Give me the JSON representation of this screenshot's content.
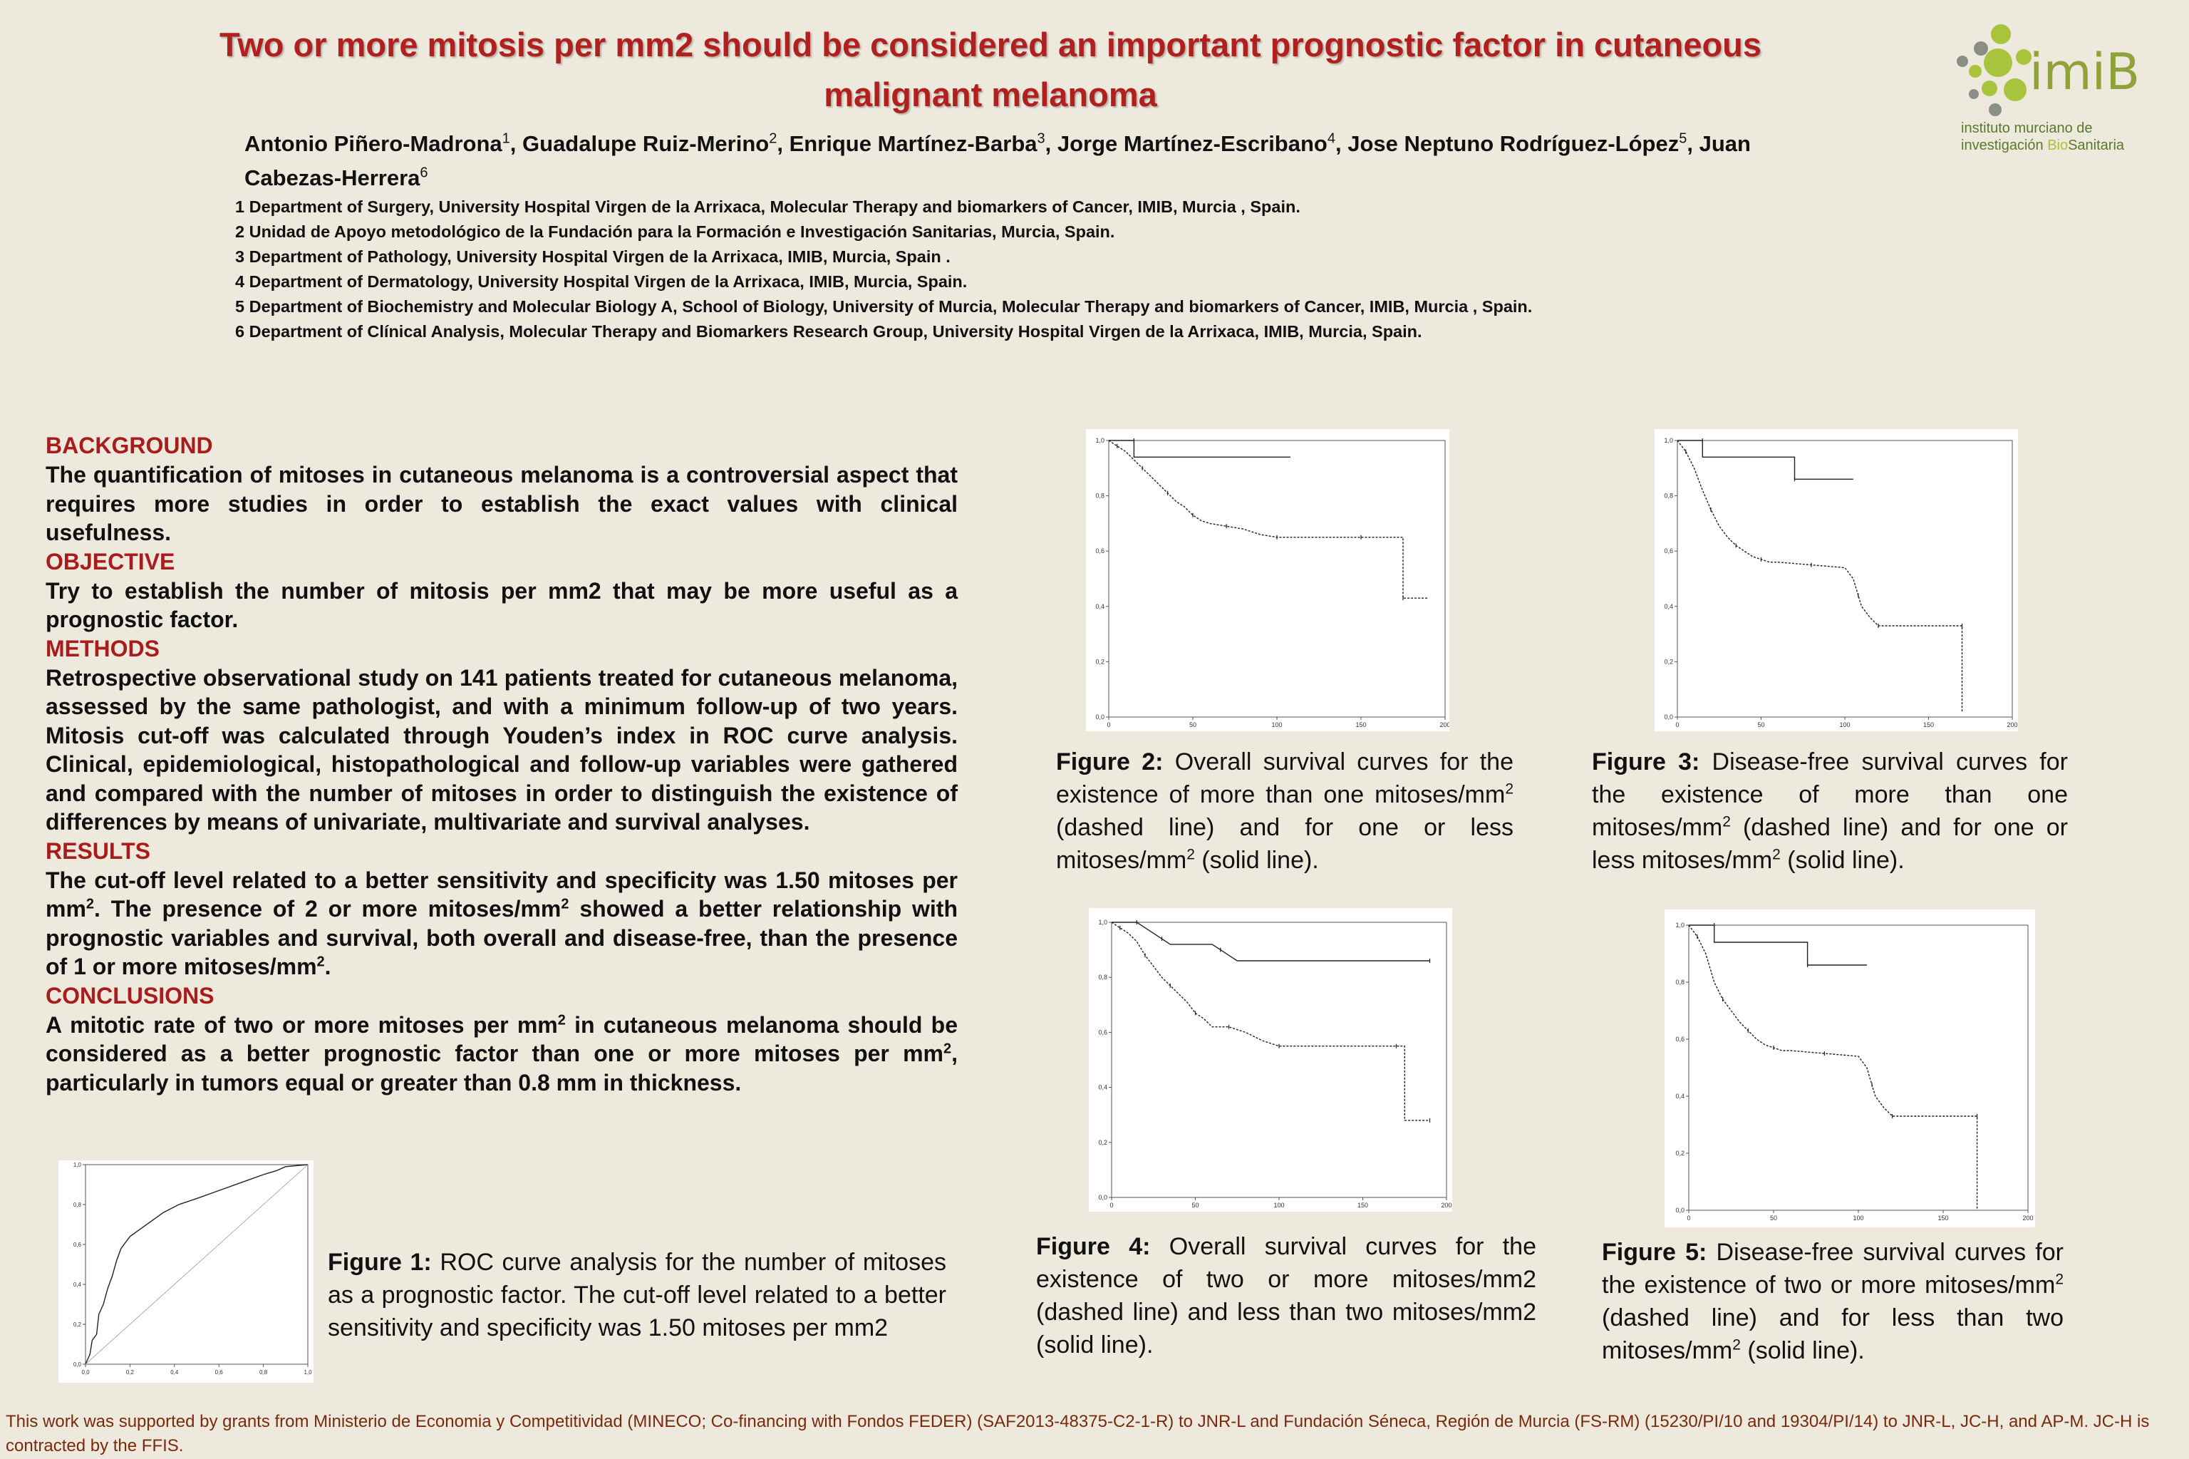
{
  "title": "Two or more mitosis per mm2 should be considered an important prognostic factor in cutaneous malignant melanoma",
  "authors": [
    {
      "name": "Antonio Piñero-Madrona",
      "sup": "1"
    },
    {
      "name": "Guadalupe Ruiz-Merino",
      "sup": "2"
    },
    {
      "name": "Enrique Martínez-Barba",
      "sup": "3"
    },
    {
      "name": "Jorge Martínez-Escribano",
      "sup": "4"
    },
    {
      "name": "Jose Neptuno Rodríguez-López",
      "sup": "5"
    },
    {
      "name": "Juan Cabezas-Herrera",
      "sup": "6"
    }
  ],
  "affiliations": [
    "1 Department of Surgery, University Hospital Virgen de la Arrixaca,  Molecular Therapy and biomarkers of Cancer, IMIB, Murcia , Spain.",
    "2 Unidad de Apoyo metodológico de la Fundación para la Formación e Investigación Sanitarias, Murcia, Spain.",
    "3 Department of Pathology, University Hospital Virgen de la Arrixaca, IMIB, Murcia, Spain .",
    "4 Department of Dermatology, University Hospital Virgen de la Arrixaca, IMIB, Murcia, Spain.",
    "5 Department of Biochemistry and Molecular Biology A, School of Biology, University of Murcia, Molecular Therapy and biomarkers of Cancer, IMIB, Murcia , Spain.",
    "6 Department of Clínical Analysis, Molecular Therapy and Biomarkers Research Group, University Hospital Virgen de la Arrixaca, IMIB, Murcia, Spain."
  ],
  "logo": {
    "text": "imiB",
    "sub_line1": "instituto murciano de",
    "sub_line2a": "investigación ",
    "sub_line2b": "Bio",
    "sub_line2c": "Sanitaria",
    "colors": {
      "green": "#a8c33c",
      "grey": "#8a8f86"
    }
  },
  "abstract": {
    "background_h": "BACKGROUND",
    "background": "The quantification of mitoses in cutaneous melanoma is a controversial aspect that requires more studies in order to establish the exact values with clinical usefulness.",
    "objective_h": "OBJECTIVE",
    "objective": "Try to establish the number of mitosis per mm2 that may be more useful as a prognostic factor.",
    "methods_h": "METHODS",
    "methods": "Retrospective observational study on 141 patients treated for cutaneous melanoma, assessed by the same pathologist, and with a minimum follow-up of two years. Mitosis cut-off was calculated through Youden’s index in ROC curve analysis. Clinical, epidemiological, histopathological and follow-up variables were gathered and compared with the number of mitoses in order to distinguish the existence of differences by means of univariate, multivariate and survival analyses.",
    "results_h": "RESULTS",
    "results_1": "The cut-off level related to a better sensitivity and specificity was 1.50 mitoses per mm",
    "results_2": ". The presence of 2 or more mitoses/mm",
    "results_3": " showed a better relationship with prognostic variables and survival, both overall and disease-free, than the presence of 1 or more mitoses/mm",
    "results_4": ".",
    "conclusions_h": "CONCLUSIONS",
    "conclusions_1": "A mitotic rate of two or more mitoses per mm",
    "conclusions_2": " in cutaneous melanoma should be considered as a better prognostic factor than one or more mitoses per mm",
    "conclusions_3": ", particularly in tumors equal or greater than 0.8 mm in thickness.",
    "sup2": "2"
  },
  "captions": {
    "fig1_label": "Figure 1:",
    "fig1_text": " ROC curve analysis for the number of mitoses as a prognostic factor. The cut-off level related to a better sensitivity and specificity was 1.50 mitoses per mm2",
    "fig2_label": "Figure 2:",
    "fig2_a": " Overall survival curves for the existence of more than one mitoses/mm",
    "fig2_b": " (dashed line) and for one or less mitoses/mm",
    "fig2_c": " (solid line).",
    "fig3_label": "Figure 3:",
    "fig3_a": " Disease-free survival curves for the existence of more than one mitoses/mm",
    "fig3_b": " (dashed line) and for one or less mitoses/mm",
    "fig3_c": " (solid line).",
    "fig4_label": "Figure 4:",
    "fig4_text": " Overall survival curves for the existence of two or more mitoses/mm2 (dashed line) and less than two mitoses/mm2 (solid line).",
    "fig5_label": "Figure 5:",
    "fig5_a": " Disease-free survival curves for the existence of two or more mitoses/mm",
    "fig5_b": " (dashed line) and for less than two mitoses/mm",
    "fig5_c": " (solid line).",
    "sup2": "2"
  },
  "footer": "This work was supported by grants from Ministerio de Economia y Competitividad (MINECO; Co-financing with Fondos FEDER) (SAF2013-48375-C2-1-R) to JNR-L and Fundación Séneca, Región de Murcia (FS-RM) (15230/PI/10 and 19304/PI/14) to JNR-L, JC-H, and AP-M. JC-H is contracted by the FFIS.",
  "chart_data": [
    {
      "type": "line",
      "figure": "Figure 1",
      "x_ticks": [
        "0,0",
        "0,2",
        "0,4",
        "0,6",
        "0,8",
        "1,0"
      ],
      "y_ticks": [
        "0,0",
        "0,2",
        "0,4",
        "0,6",
        "0,8",
        "1,0"
      ],
      "xlim": [
        0,
        1
      ],
      "ylim": [
        0,
        1
      ],
      "series": [
        {
          "style": "solid",
          "x": [
            0,
            0.02,
            0.03,
            0.05,
            0.06,
            0.08,
            0.1,
            0.12,
            0.14,
            0.16,
            0.2,
            0.25,
            0.3,
            0.35,
            0.42,
            0.5,
            0.6,
            0.7,
            0.8,
            0.86,
            0.9,
            1.0
          ],
          "y": [
            0,
            0.05,
            0.12,
            0.15,
            0.25,
            0.3,
            0.38,
            0.44,
            0.52,
            0.58,
            0.64,
            0.68,
            0.72,
            0.76,
            0.8,
            0.83,
            0.87,
            0.91,
            0.95,
            0.97,
            0.99,
            1.0
          ]
        },
        {
          "style": "reference",
          "x": [
            0,
            1
          ],
          "y": [
            0,
            1
          ]
        }
      ]
    },
    {
      "type": "line",
      "figure": "Figure 2",
      "x_ticks": [
        "0",
        "50",
        "100",
        "150",
        "200"
      ],
      "y_ticks": [
        "0,0",
        "0,2",
        "0,4",
        "0,6",
        "0,8",
        "1,0"
      ],
      "xlim": [
        0,
        200
      ],
      "ylim": [
        0,
        1
      ],
      "series": [
        {
          "style": "solid",
          "x": [
            0,
            15,
            15,
            108
          ],
          "y": [
            1.0,
            1.0,
            0.94,
            0.94
          ]
        },
        {
          "style": "dashed",
          "x": [
            0,
            5,
            10,
            15,
            20,
            25,
            30,
            35,
            40,
            45,
            50,
            55,
            60,
            70,
            80,
            90,
            100,
            110,
            130,
            150,
            170,
            175,
            175,
            190
          ],
          "y": [
            1.0,
            0.98,
            0.96,
            0.93,
            0.9,
            0.87,
            0.84,
            0.81,
            0.78,
            0.76,
            0.73,
            0.71,
            0.7,
            0.69,
            0.68,
            0.66,
            0.65,
            0.65,
            0.65,
            0.65,
            0.65,
            0.65,
            0.43,
            0.43
          ]
        }
      ]
    },
    {
      "type": "line",
      "figure": "Figure 3",
      "x_ticks": [
        "0",
        "50",
        "100",
        "150",
        "200"
      ],
      "y_ticks": [
        "0,0",
        "0,2",
        "0,4",
        "0,6",
        "0,8",
        "1,0"
      ],
      "xlim": [
        0,
        200
      ],
      "ylim": [
        0,
        1
      ],
      "series": [
        {
          "style": "solid",
          "x": [
            0,
            15,
            15,
            70,
            70,
            105
          ],
          "y": [
            1.0,
            1.0,
            0.94,
            0.94,
            0.86,
            0.86
          ]
        },
        {
          "style": "dashed",
          "x": [
            0,
            5,
            10,
            15,
            20,
            25,
            30,
            35,
            40,
            45,
            50,
            55,
            60,
            80,
            100,
            105,
            108,
            110,
            115,
            120,
            140,
            160,
            170,
            170
          ],
          "y": [
            1.0,
            0.96,
            0.9,
            0.82,
            0.75,
            0.69,
            0.65,
            0.62,
            0.6,
            0.58,
            0.57,
            0.56,
            0.56,
            0.55,
            0.54,
            0.5,
            0.44,
            0.4,
            0.36,
            0.33,
            0.33,
            0.33,
            0.33,
            0.02
          ]
        }
      ]
    },
    {
      "type": "line",
      "figure": "Figure 4",
      "x_ticks": [
        "0",
        "50",
        "100",
        "150",
        "200"
      ],
      "y_ticks": [
        "0,0",
        "0,2",
        "0,4",
        "0,6",
        "0,8",
        "1,0"
      ],
      "xlim": [
        0,
        200
      ],
      "ylim": [
        0,
        1
      ],
      "series": [
        {
          "style": "solid",
          "x": [
            0,
            15,
            20,
            25,
            30,
            35,
            60,
            65,
            70,
            75,
            190
          ],
          "y": [
            1.0,
            1.0,
            0.98,
            0.96,
            0.94,
            0.92,
            0.92,
            0.9,
            0.88,
            0.86,
            0.86
          ]
        },
        {
          "style": "dashed",
          "x": [
            0,
            5,
            10,
            15,
            20,
            25,
            30,
            35,
            40,
            45,
            50,
            55,
            60,
            70,
            80,
            90,
            100,
            120,
            150,
            170,
            175,
            175,
            190
          ],
          "y": [
            1.0,
            0.98,
            0.96,
            0.93,
            0.88,
            0.84,
            0.8,
            0.77,
            0.74,
            0.71,
            0.67,
            0.65,
            0.62,
            0.62,
            0.6,
            0.57,
            0.55,
            0.55,
            0.55,
            0.55,
            0.55,
            0.28,
            0.28
          ]
        }
      ]
    },
    {
      "type": "line",
      "figure": "Figure 5",
      "x_ticks": [
        "0",
        "50",
        "100",
        "150",
        "200"
      ],
      "y_ticks": [
        "0,0",
        "0,2",
        "0,4",
        "0,6",
        "0,8",
        "1,0"
      ],
      "xlim": [
        0,
        200
      ],
      "ylim": [
        0,
        1
      ],
      "series": [
        {
          "style": "solid",
          "x": [
            0,
            15,
            15,
            70,
            70,
            105
          ],
          "y": [
            1.0,
            1.0,
            0.94,
            0.94,
            0.86,
            0.86
          ]
        },
        {
          "style": "dashed",
          "x": [
            0,
            5,
            10,
            15,
            20,
            25,
            30,
            35,
            40,
            45,
            50,
            55,
            60,
            80,
            100,
            105,
            108,
            110,
            115,
            120,
            140,
            160,
            170,
            170
          ],
          "y": [
            1.0,
            0.96,
            0.9,
            0.8,
            0.74,
            0.7,
            0.66,
            0.63,
            0.6,
            0.58,
            0.57,
            0.56,
            0.56,
            0.55,
            0.54,
            0.5,
            0.44,
            0.4,
            0.36,
            0.33,
            0.33,
            0.33,
            0.33,
            0.0
          ]
        }
      ]
    }
  ]
}
